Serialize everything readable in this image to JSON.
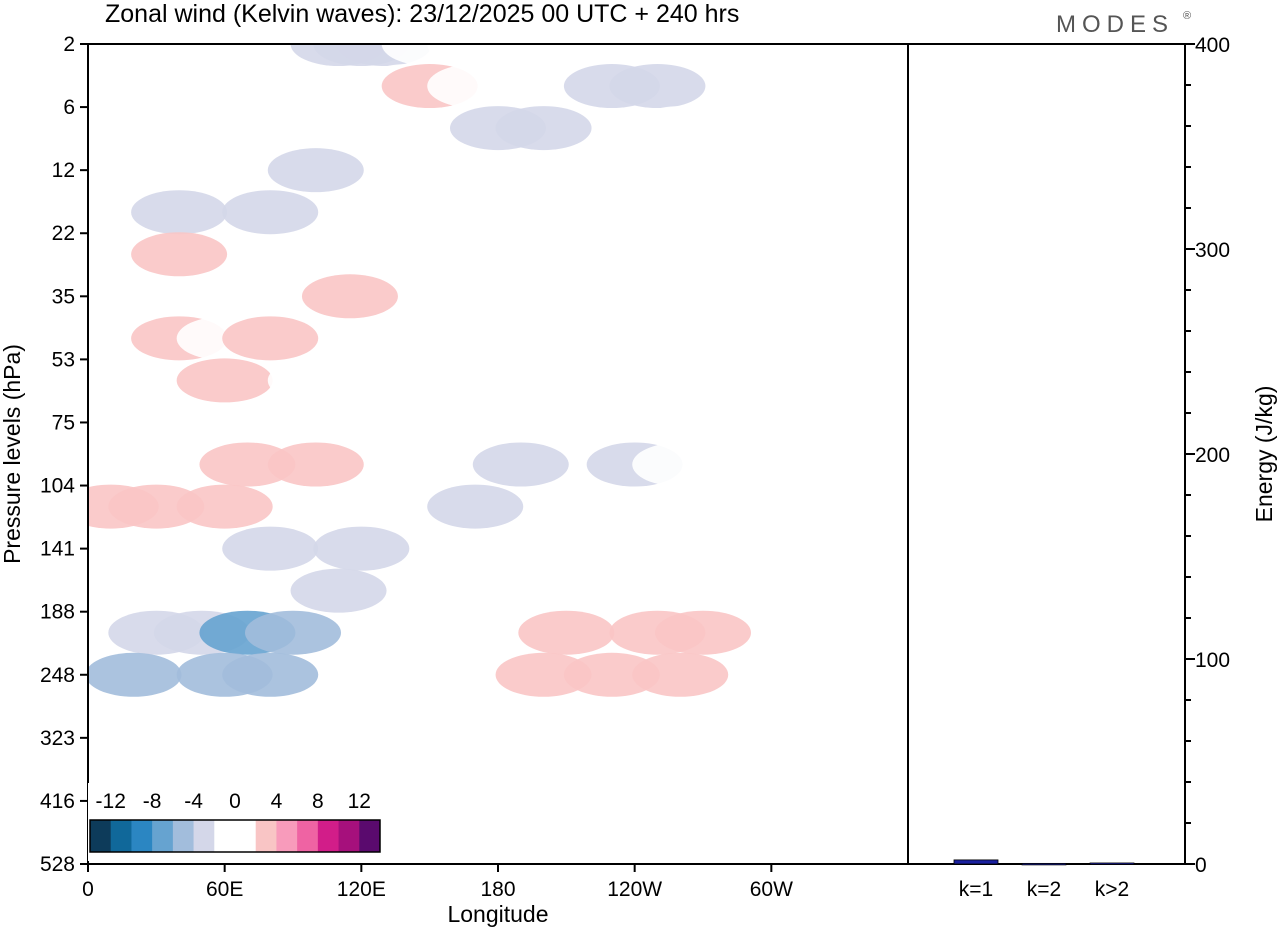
{
  "chart_data": [
    {
      "type": "heatmap",
      "title": "Zonal wind (Kelvin waves):  23/12/2025  00 UTC  + 240 hrs",
      "xlabel": "Longitude",
      "ylabel": "Pressure levels (hPa)",
      "x_ticks": [
        "0",
        "60E",
        "120E",
        "180",
        "120W",
        "60W"
      ],
      "x_tick_degrees": [
        0,
        60,
        120,
        180,
        240,
        300
      ],
      "xlim": [
        0,
        360
      ],
      "y_ticks": [
        "2",
        "6",
        "12",
        "22",
        "35",
        "53",
        "75",
        "104",
        "141",
        "188",
        "248",
        "323",
        "416",
        "528"
      ],
      "colorbar": {
        "labels": [
          "-12",
          "-8",
          "-4",
          "0",
          "4",
          "8",
          "12"
        ],
        "colors": [
          "#0d3b5a",
          "#10689a",
          "#2b86c2",
          "#66a3d0",
          "#a2bddc",
          "#d4d7e9",
          "#ffffff",
          "#ffffff",
          "#f9c5c5",
          "#f89bbb",
          "#ef63a3",
          "#d21d89",
          "#a6107c",
          "#5a0a6e"
        ]
      },
      "cells": [
        {
          "lon": 100,
          "lev": 6,
          "v": 2
        },
        {
          "lon": 115,
          "lev": 6,
          "v": 3
        },
        {
          "lon": 130,
          "lev": 5,
          "v": 2
        },
        {
          "lon": 160,
          "lev": 4,
          "v": 1
        },
        {
          "lon": 110,
          "lev": 0,
          "v": -2
        },
        {
          "lon": 120,
          "lev": 0,
          "v": -3
        },
        {
          "lon": 130,
          "lev": 0,
          "v": -2
        },
        {
          "lon": 150,
          "lev": 0,
          "v": 2
        },
        {
          "lon": 170,
          "lev": 0,
          "v": 2
        },
        {
          "lon": 200,
          "lev": 0,
          "v": 1
        },
        {
          "lon": 140,
          "lev": 1,
          "v": 2
        },
        {
          "lon": 150,
          "lev": 1,
          "v": 3
        },
        {
          "lon": 170,
          "lev": 1,
          "v": 2
        },
        {
          "lon": 180,
          "lev": 2,
          "v": -2
        },
        {
          "lon": 200,
          "lev": 2,
          "v": -3
        },
        {
          "lon": 230,
          "lev": 1,
          "v": -3
        },
        {
          "lon": 250,
          "lev": 1,
          "v": -2
        },
        {
          "lon": 260,
          "lev": 2,
          "v": 2
        },
        {
          "lon": 280,
          "lev": 3,
          "v": 1
        },
        {
          "lon": 300,
          "lev": 2,
          "v": 2
        },
        {
          "lon": 40,
          "lev": 4,
          "v": -2
        },
        {
          "lon": 80,
          "lev": 4,
          "v": -3
        },
        {
          "lon": 100,
          "lev": 3,
          "v": -2
        },
        {
          "lon": 20,
          "lev": 5,
          "v": 2
        },
        {
          "lon": 40,
          "lev": 5,
          "v": 3
        },
        {
          "lon": 140,
          "lev": 5,
          "v": 2
        },
        {
          "lon": 180,
          "lev": 4,
          "v": 2
        },
        {
          "lon": 20,
          "lev": 7,
          "v": 2
        },
        {
          "lon": 40,
          "lev": 7,
          "v": 3
        },
        {
          "lon": 60,
          "lev": 7,
          "v": 2
        },
        {
          "lon": 60,
          "lev": 8,
          "v": 3
        },
        {
          "lon": 80,
          "lev": 7,
          "v": 4
        },
        {
          "lon": 100,
          "lev": 8,
          "v": 2
        },
        {
          "lon": 200,
          "lev": 8,
          "v": 2
        },
        {
          "lon": 220,
          "lev": 8,
          "v": 2
        },
        {
          "lon": 200,
          "lev": 10,
          "v": -1
        },
        {
          "lon": 240,
          "lev": 10,
          "v": -2
        },
        {
          "lon": 260,
          "lev": 10,
          "v": -1
        },
        {
          "lon": 10,
          "lev": 11,
          "v": 3
        },
        {
          "lon": 30,
          "lev": 11,
          "v": 4
        },
        {
          "lon": 60,
          "lev": 11,
          "v": 4
        },
        {
          "lon": 70,
          "lev": 10,
          "v": 4
        },
        {
          "lon": 100,
          "lev": 10,
          "v": 3
        },
        {
          "lon": 80,
          "lev": 12,
          "v": -3
        },
        {
          "lon": 120,
          "lev": 12,
          "v": -3
        },
        {
          "lon": 170,
          "lev": 11,
          "v": -2
        },
        {
          "lon": 190,
          "lev": 10,
          "v": -3
        },
        {
          "lon": 240,
          "lev": 12,
          "v": 2
        },
        {
          "lon": 280,
          "lev": 12,
          "v": 2
        },
        {
          "lon": 340,
          "lev": 12,
          "v": 2
        },
        {
          "lon": 30,
          "lev": 14,
          "v": -3
        },
        {
          "lon": 50,
          "lev": 14,
          "v": -3
        },
        {
          "lon": 70,
          "lev": 14,
          "v": -6
        },
        {
          "lon": 90,
          "lev": 14,
          "v": -4
        },
        {
          "lon": 110,
          "lev": 13,
          "v": -3
        },
        {
          "lon": 20,
          "lev": 15,
          "v": -4
        },
        {
          "lon": 60,
          "lev": 15,
          "v": -5
        },
        {
          "lon": 80,
          "lev": 15,
          "v": -4
        },
        {
          "lon": 210,
          "lev": 14,
          "v": 3
        },
        {
          "lon": 250,
          "lev": 14,
          "v": 4
        },
        {
          "lon": 270,
          "lev": 14,
          "v": 4
        },
        {
          "lon": 200,
          "lev": 15,
          "v": 4
        },
        {
          "lon": 230,
          "lev": 15,
          "v": 4
        },
        {
          "lon": 260,
          "lev": 15,
          "v": 4
        },
        {
          "lon": 130,
          "lev": 17,
          "v": 1
        },
        {
          "lon": 170,
          "lev": 17,
          "v": 1
        },
        {
          "lon": 200,
          "lev": 17,
          "v": 2
        },
        {
          "lon": 240,
          "lev": 17,
          "v": 2
        },
        {
          "lon": 20,
          "lev": 18,
          "v": -1
        },
        {
          "lon": 60,
          "lev": 18,
          "v": -1
        },
        {
          "lon": 200,
          "lev": 20,
          "v": 1
        },
        {
          "lon": 240,
          "lev": 19,
          "v": 1
        }
      ]
    },
    {
      "type": "bar",
      "categories": [
        "k=1",
        "k=2",
        "k>2"
      ],
      "values": [
        2,
        0.3,
        0.5
      ],
      "ylabel": "Energy (J/kg)",
      "ylim": [
        0,
        400
      ],
      "y_ticks": [
        "0",
        "100",
        "200",
        "300",
        "400"
      ],
      "bar_color": "#1a20a0"
    }
  ],
  "brand": "MODES",
  "brand_mark": "®"
}
